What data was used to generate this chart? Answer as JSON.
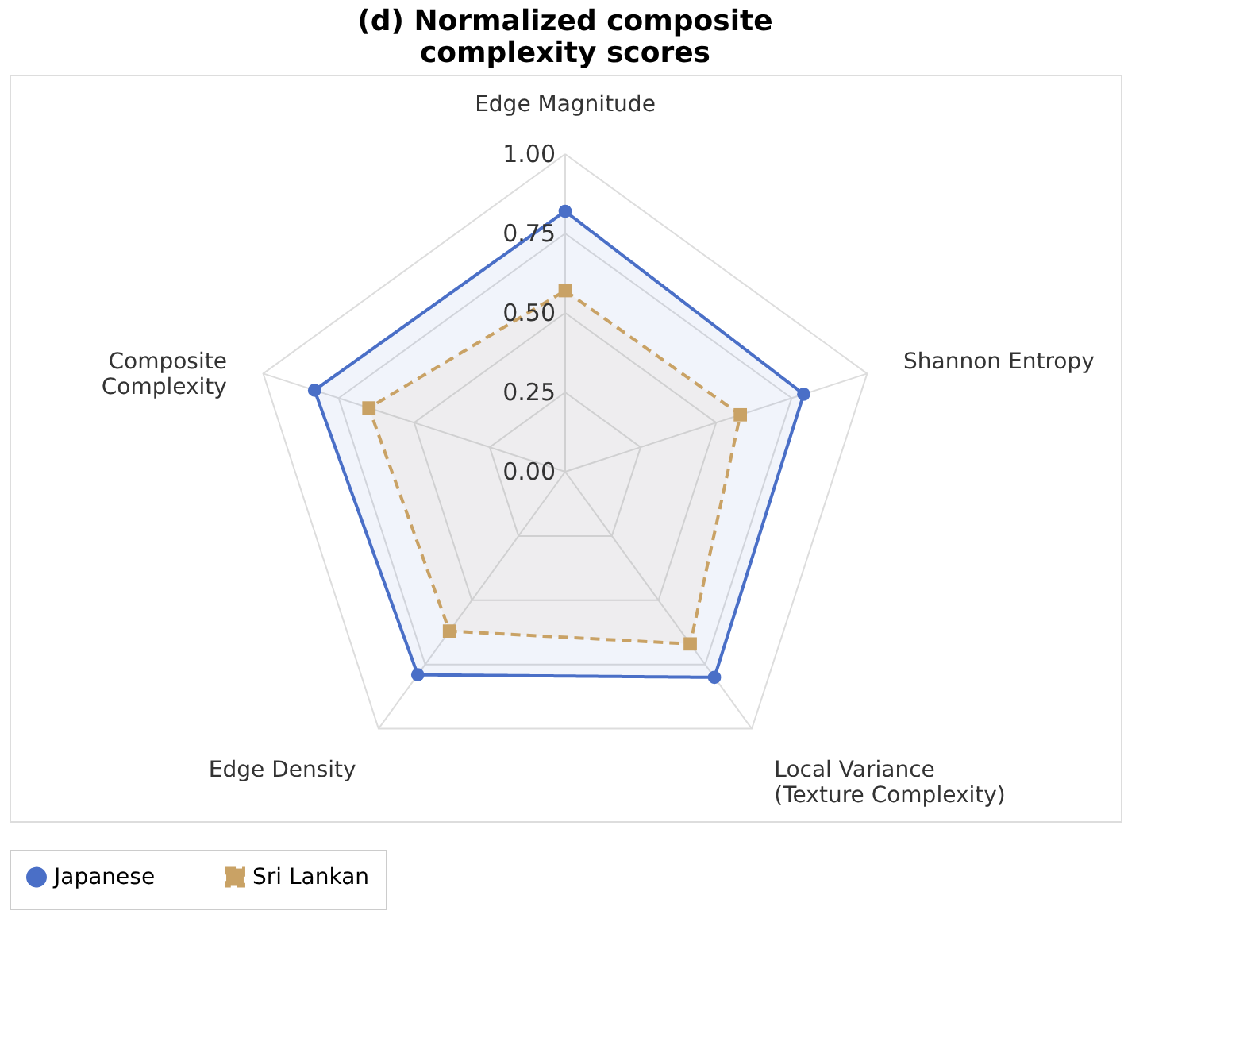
{
  "chart_data": {
    "type": "radar",
    "title": "(d) Normalized composite\ncomplexity scores",
    "categories": [
      "Edge Magnitude",
      "Shannon Entropy",
      "Local Variance\n(Texture Complexity)",
      "Edge Density",
      "Composite\nComplexity"
    ],
    "ylim": [
      0,
      1
    ],
    "yticks": [
      {
        "value": 0,
        "label": "0.00"
      },
      {
        "value": 0.25,
        "label": "0.25"
      },
      {
        "value": 0.5,
        "label": "0.50"
      },
      {
        "value": 0.75,
        "label": "0.75"
      },
      {
        "value": 1,
        "label": "1.00"
      }
    ],
    "series": [
      {
        "name": "Japanese",
        "color": "#4a6fc7",
        "values": [
          0.82,
          0.79,
          0.8,
          0.79,
          0.83
        ],
        "marker": "circle",
        "line_style": "solid"
      },
      {
        "name": "Sri Lankan",
        "color": "#c9a265",
        "values": [
          0.57,
          0.58,
          0.67,
          0.62,
          0.65
        ],
        "marker": "square",
        "line_style": "dashed"
      }
    ],
    "grid": true,
    "legend": "bottom"
  }
}
